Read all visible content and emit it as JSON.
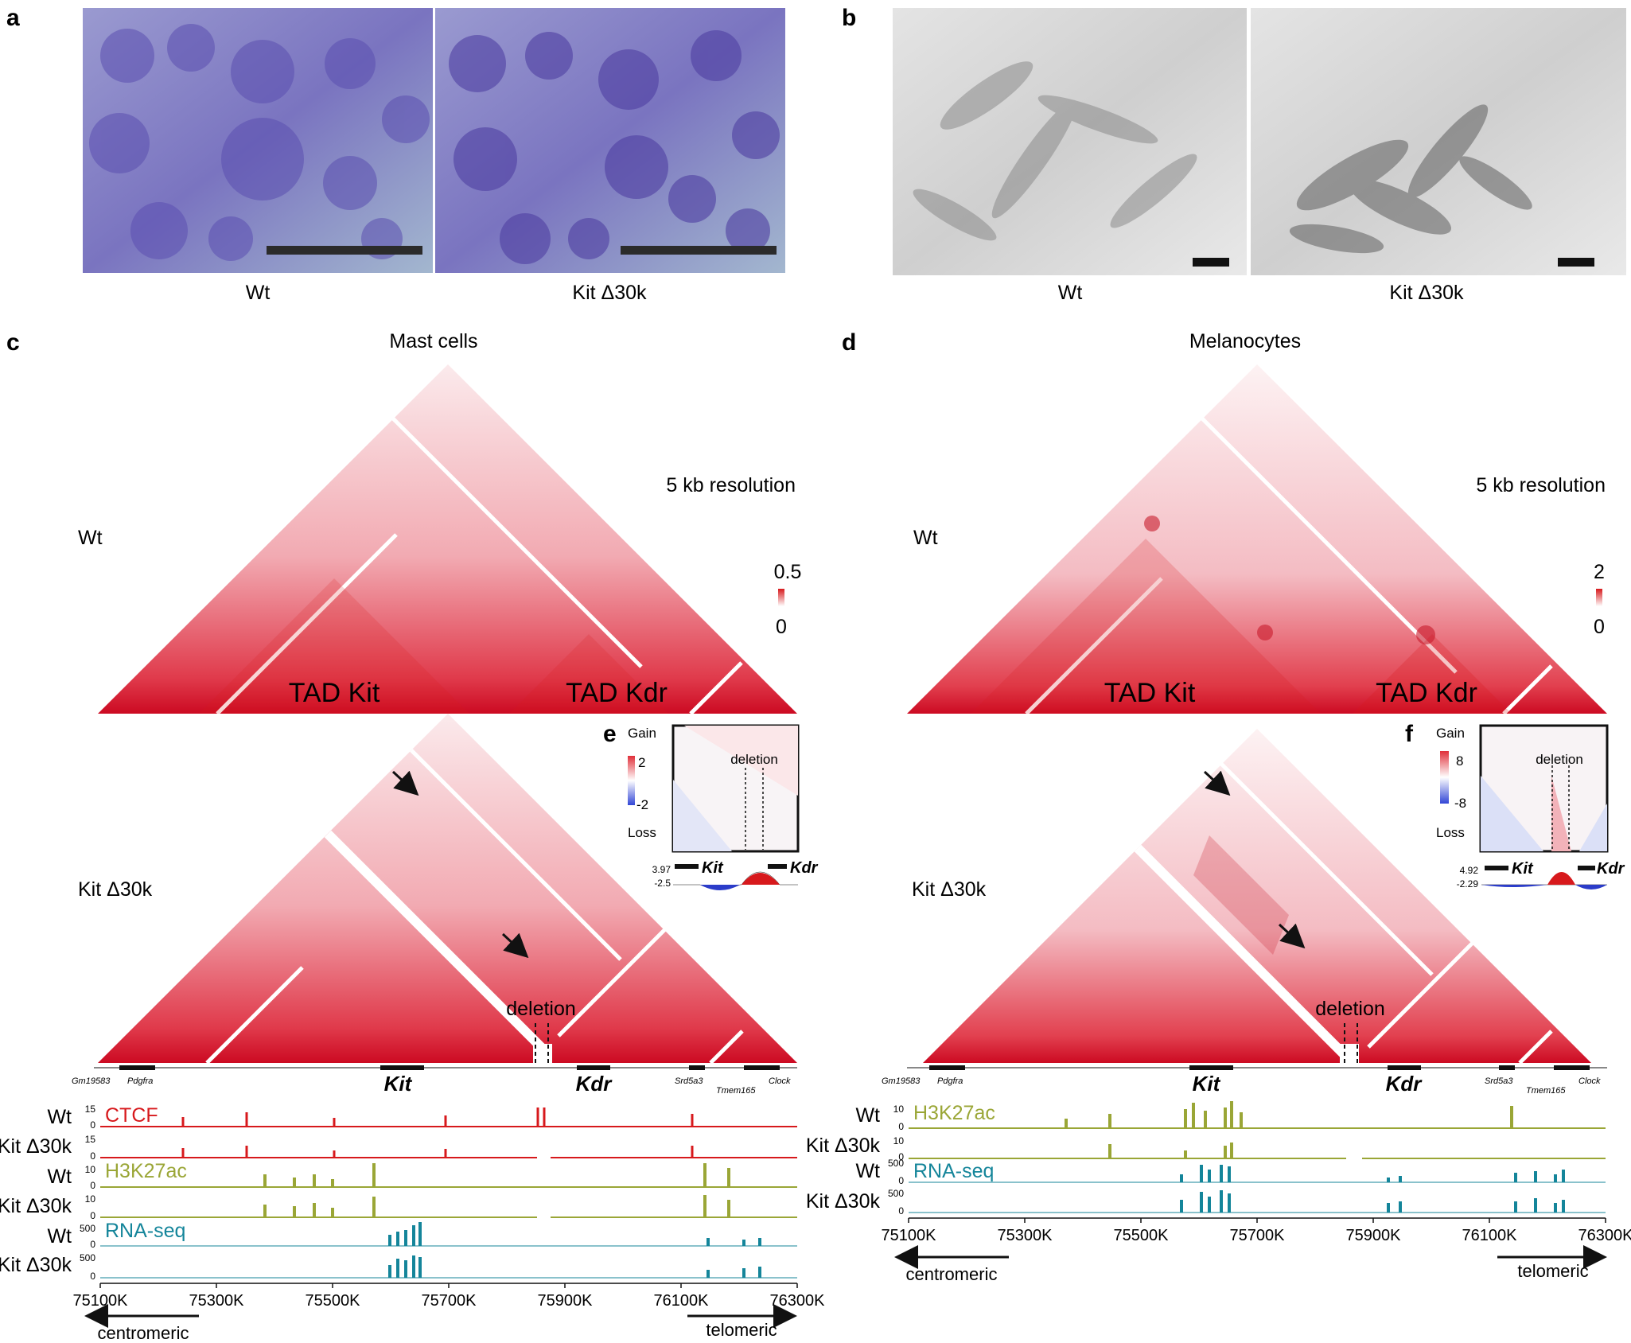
{
  "colors": {
    "red": "#d7191c",
    "olive": "#9aa636",
    "teal": "#14859a",
    "blue": "#2b3cc9"
  },
  "panels": {
    "a": {
      "label": "a",
      "left": "Wt",
      "right": "Kit Δ30k"
    },
    "b": {
      "label": "b",
      "left": "Wt",
      "right": "Kit Δ30k"
    },
    "c": {
      "label": "c",
      "title": "Mast cells",
      "resolution": "5 kb resolution",
      "row_wt": "Wt",
      "row_mut": "Kit Δ30k",
      "scale_max": "0.5",
      "scale_min": "0",
      "tad1": "TAD Kit",
      "tad2": "TAD Kdr",
      "deletion": "deletion"
    },
    "d": {
      "label": "d",
      "title": "Melanocytes",
      "resolution": "5 kb resolution",
      "row_wt": "Wt",
      "row_mut": "Kit Δ30k",
      "scale_max": "2",
      "scale_min": "0",
      "tad1": "TAD Kit",
      "tad2": "TAD Kdr",
      "deletion": "deletion"
    },
    "e": {
      "label": "e",
      "gain": "Gain",
      "loss": "Loss",
      "max": "2",
      "min": "-2",
      "deletion": "deletion",
      "gene1": "Kit",
      "gene2": "Kdr",
      "track_max": "3.97",
      "track_min": "-2.5"
    },
    "f": {
      "label": "f",
      "gain": "Gain",
      "loss": "Loss",
      "max": "8",
      "min": "-8",
      "deletion": "deletion",
      "gene1": "Kit",
      "gene2": "Kdr",
      "track_max": "4.92",
      "track_min": "-2.29"
    }
  },
  "genes": {
    "gm": "Gm19583",
    "pdgfra": "Pdgfra",
    "kit": "Kit",
    "kdr": "Kdr",
    "srd": "Srd5a3",
    "tmem": "Tmem165",
    "clock": "Clock"
  },
  "tracks_c": {
    "ctcf": "CTCF",
    "h3k27ac": "H3K27ac",
    "rnaseq": "RNA-seq",
    "wt": "Wt",
    "mut": "Kit Δ30k",
    "ctcf_scale": "15",
    "h3_scale": "10",
    "rna_scale": "500",
    "zero": "0"
  },
  "tracks_d": {
    "h3k27ac": "H3K27ac",
    "rnaseq": "RNA-seq",
    "wt": "Wt",
    "mut": "Kit Δ30k",
    "h3_scale": "10",
    "rna_scale": "500",
    "zero": "0"
  },
  "axis": {
    "ticks": [
      "75100K",
      "75300K",
      "75500K",
      "75700K",
      "75900K",
      "76100K",
      "76300K"
    ],
    "centromeric": "centromeric",
    "telomeric": "telomeric"
  }
}
